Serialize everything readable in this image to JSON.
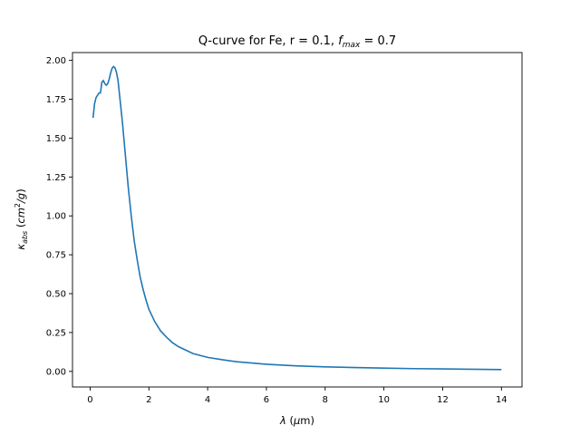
{
  "chart_data": {
    "type": "line",
    "title": {
      "main": "Q-curve for Fe, r = 0.1, ",
      "f": "f",
      "sub": "max",
      "rest": " = 0.7"
    },
    "xlabel": {
      "greek": "λ",
      "rest": " (",
      "mu": "μ",
      "unit": "m)"
    },
    "ylabel": {
      "kappa": "κ",
      "sub": "abs",
      "open": " (",
      "cm": "cm",
      "sup": "2",
      "slash": "/",
      "g": "g",
      "close": ")"
    },
    "xlim": [
      -0.6,
      14.7
    ],
    "ylim": [
      -0.1,
      2.05
    ],
    "xticks": [
      0,
      2,
      4,
      6,
      8,
      10,
      12,
      14
    ],
    "yticks": [
      0.0,
      0.25,
      0.5,
      0.75,
      1.0,
      1.25,
      1.5,
      1.75,
      2.0
    ],
    "xtick_labels": [
      "0",
      "2",
      "4",
      "6",
      "8",
      "10",
      "12",
      "14"
    ],
    "ytick_labels": [
      "0.00",
      "0.25",
      "0.50",
      "0.75",
      "1.00",
      "1.25",
      "1.50",
      "1.75",
      "2.00"
    ],
    "grid": false,
    "series": [
      {
        "color": "#1f77b4",
        "x": [
          0.1,
          0.15,
          0.2,
          0.3,
          0.35,
          0.4,
          0.45,
          0.5,
          0.55,
          0.6,
          0.65,
          0.7,
          0.75,
          0.8,
          0.85,
          0.9,
          0.95,
          1.0,
          1.1,
          1.2,
          1.3,
          1.4,
          1.5,
          1.6,
          1.7,
          1.8,
          1.9,
          2.0,
          2.2,
          2.4,
          2.6,
          2.8,
          3.0,
          3.5,
          4.0,
          4.5,
          5.0,
          6.0,
          7.0,
          8.0,
          9.0,
          10.0,
          11.0,
          12.0,
          13.0,
          14.0
        ],
        "y": [
          1.63,
          1.72,
          1.76,
          1.79,
          1.79,
          1.86,
          1.87,
          1.85,
          1.84,
          1.85,
          1.88,
          1.92,
          1.95,
          1.96,
          1.95,
          1.92,
          1.87,
          1.78,
          1.6,
          1.39,
          1.18,
          1.0,
          0.84,
          0.72,
          0.61,
          0.53,
          0.46,
          0.4,
          0.32,
          0.26,
          0.22,
          0.185,
          0.16,
          0.115,
          0.09,
          0.075,
          0.062,
          0.046,
          0.036,
          0.029,
          0.025,
          0.021,
          0.018,
          0.016,
          0.014,
          0.012
        ]
      }
    ]
  }
}
